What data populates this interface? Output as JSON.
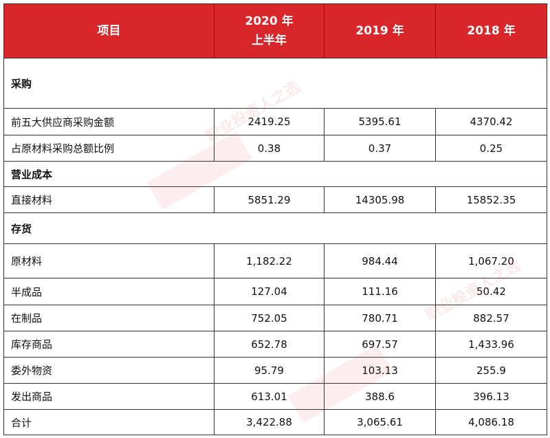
{
  "header": {
    "col_item": "项目",
    "col_2020_line1": "2020 年",
    "col_2020_line2": "上半年",
    "col_2019": "2019 年",
    "col_2018": "2018 年"
  },
  "sections": {
    "procurement": "采购",
    "operating_cost": "营业成本",
    "inventory": "存货"
  },
  "rows": {
    "top5": {
      "label": "前五大供应商采购金额",
      "v2020": "2419.25",
      "v2019": "5395.61",
      "v2018": "4370.42"
    },
    "ratio": {
      "label": "占原材料采购总额比例",
      "v2020": "0.38",
      "v2019": "0.37",
      "v2018": "0.25"
    },
    "direct": {
      "label": "直接材料",
      "v2020": "5851.29",
      "v2019": "14305.98",
      "v2018": "15852.35"
    },
    "raw": {
      "label": "原材料",
      "v2020": "1,182.22",
      "v2019": "984.44",
      "v2018": "1,067.20"
    },
    "semi": {
      "label": "半成品",
      "v2020": "127.04",
      "v2019": "111.16",
      "v2018": "50.42"
    },
    "wip": {
      "label": "在制品",
      "v2020": "752.05",
      "v2019": "780.71",
      "v2018": "882.57"
    },
    "stock": {
      "label": "库存商品",
      "v2020": "652.78",
      "v2019": "697.57",
      "v2018": "1,433.96"
    },
    "consign": {
      "label": "委外物资",
      "v2020": "95.79",
      "v2019": "103.13",
      "v2018": "255.9"
    },
    "shipped": {
      "label": "发出商品",
      "v2020": "613.01",
      "v2019": "388.6",
      "v2018": "396.13"
    },
    "total": {
      "label": "合计",
      "v2020": "3,422.88",
      "v2019": "3,065.61",
      "v2018": "4,086.18"
    }
  },
  "watermark": {
    "text1": "职业投资人之选",
    "text2": "职业投资人之选"
  }
}
